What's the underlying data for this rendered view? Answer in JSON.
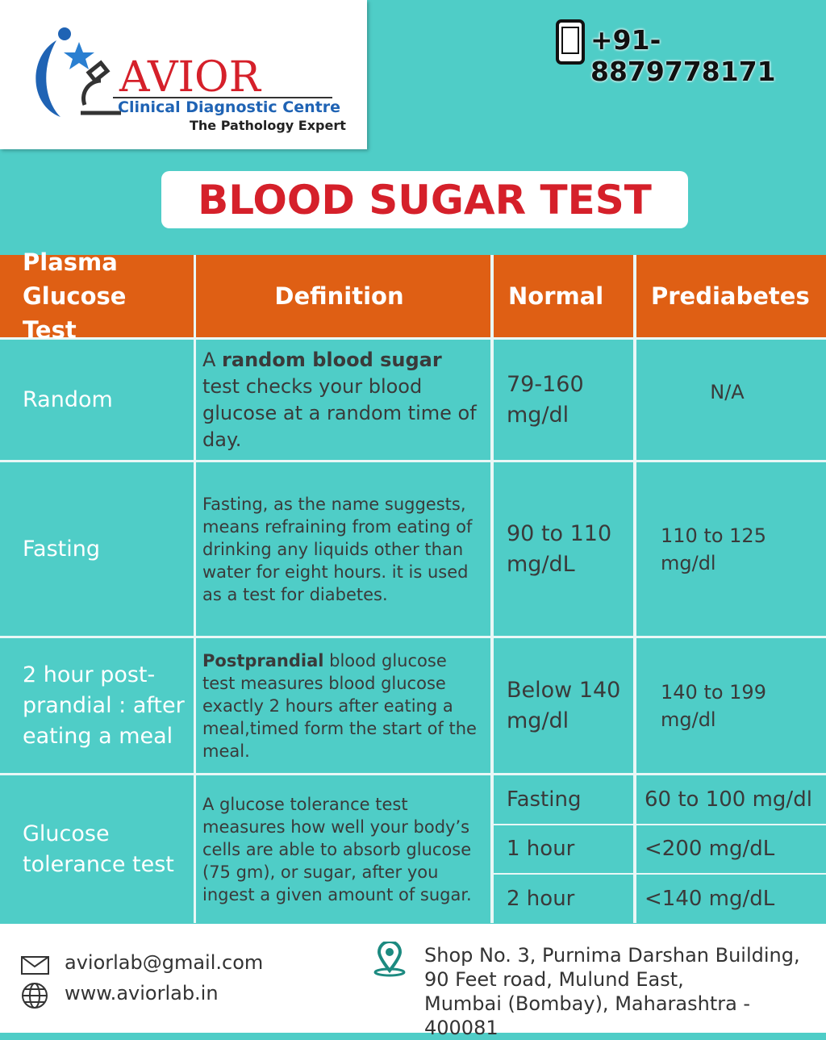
{
  "header": {
    "logo_name": "AVIOR",
    "logo_subtitle": "Clinical Diagnostic Centre",
    "logo_tagline": "The Pathology Expert",
    "phone": "+91-8879778171"
  },
  "title": "BLOOD SUGAR TEST",
  "table": {
    "columns": [
      "Plasma Glucose Test",
      "Definition",
      "Normal",
      "Prediabetes"
    ],
    "rows": [
      {
        "test": "Random",
        "definition": [
          {
            "text": "A "
          },
          {
            "text": "random blood sugar",
            "bold": true
          },
          {
            "text": " test checks your blood glucose at a random time of day."
          }
        ],
        "normal": "79-160 mg/dl",
        "prediabetes": "N/A"
      },
      {
        "test": "Fasting",
        "definition": [
          {
            "text": "Fasting, as the name suggests, means refraining from eating of drinking any liquids other than water for eight hours. it is used as a test for diabetes."
          }
        ],
        "normal": "90 to 110 mg/dL",
        "prediabetes": "110 to 125 mg/dl"
      },
      {
        "test": "2 hour post-prandial : after eating a meal",
        "definition": [
          {
            "text": "Postprandial",
            "bold": true
          },
          {
            "text": " blood glucose test measures blood glucose exactly 2 hours after eating a meal,timed form the start of the meal."
          }
        ],
        "normal": "Below 140 mg/dl",
        "prediabetes": "140 to 199 mg/dl"
      },
      {
        "test": "Glucose tolerance test",
        "definition": [
          {
            "text": "A glucose tolerance test measures how well your body’s cells are able to absorb glucose (75 gm), or sugar, after you ingest a given amount of sugar."
          }
        ],
        "normal": [
          "Fasting",
          "1 hour",
          "2 hour"
        ],
        "prediabetes": [
          "60 to 100 mg/dl",
          "<200 mg/dL",
          "<140 mg/dL"
        ]
      }
    ]
  },
  "footer": {
    "email": "aviorlab@gmail.com",
    "website": "www.aviorlab.in",
    "address": [
      "Shop No. 3, Purnima Darshan Building,",
      "90 Feet road, Mulund East,",
      "Mumbai (Bombay), Maharashtra - 400081"
    ]
  }
}
